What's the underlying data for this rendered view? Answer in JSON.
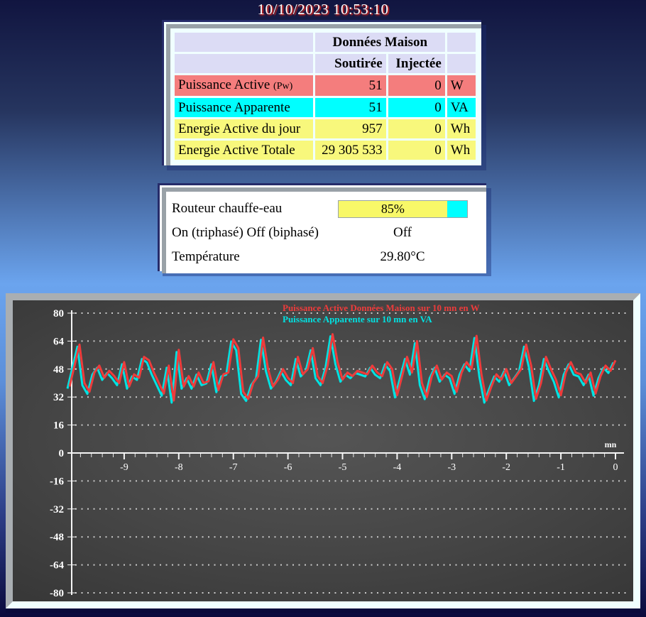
{
  "page": {
    "timestamp": "10/10/2023 10:53:10"
  },
  "maison_table": {
    "title": "Données Maison",
    "col_soutiree": "Soutirée",
    "col_injectee": "Injectée",
    "header_color": "#dcdcf5",
    "rows": [
      {
        "label": "Puissance Active",
        "label_suffix": "(Pw)",
        "soutiree": "51",
        "injectee": "0",
        "unit": "W",
        "color": "#f47d7d"
      },
      {
        "label": "Puissance Apparente",
        "label_suffix": "",
        "soutiree": "51",
        "injectee": "0",
        "unit": "VA",
        "color": "#00ffff"
      },
      {
        "label": "Energie Active du jour",
        "label_suffix": "",
        "soutiree": "957",
        "injectee": "0",
        "unit": "Wh",
        "color": "#f8f87c"
      },
      {
        "label": "Energie Active Totale",
        "label_suffix": "",
        "soutiree": "29 305 533",
        "injectee": "0",
        "unit": "Wh",
        "color": "#f8f87c"
      }
    ]
  },
  "router_panel": {
    "router_label": "Routeur chauffe-eau",
    "onoff_label": "On (triphasé) Off (biphasé)",
    "onoff_value": "Off",
    "temperature_label": "Température",
    "temperature_value": "29.80°C",
    "progress": {
      "percent": 85,
      "label": "85%",
      "fill_color": "#f8f868",
      "track_color": "#00ffff"
    }
  },
  "chart_data": {
    "type": "line",
    "x": {
      "min": -10,
      "max": 0,
      "major_ticks": [
        -9,
        -8,
        -7,
        -6,
        -5,
        -4,
        -3,
        -2,
        -1,
        0
      ],
      "minor_tick_step": 0.2,
      "unit": "mn"
    },
    "y": {
      "min": -80,
      "max": 80,
      "tick_step": 16,
      "ticks": [
        80,
        64,
        48,
        32,
        16,
        0,
        -16,
        -32,
        -48,
        -64,
        -80
      ]
    },
    "grid": "dotted-horizontal",
    "legend_position": "top-center",
    "legend": [
      {
        "label": "Puissance Active Données Maison sur 10 mn en W",
        "color": "#ee3b3b"
      },
      {
        "label": "Puissance Apparente sur 10 mn en VA",
        "color": "#00e2e2"
      }
    ],
    "series": [
      {
        "name": "Puissance Active Données Maison (W)",
        "color": "#ee3b3b",
        "values": [
          38,
          50,
          62,
          40,
          35,
          46,
          50,
          43,
          47,
          44,
          40,
          52,
          38,
          45,
          43,
          55,
          53,
          46,
          40,
          34,
          50,
          30,
          59,
          38,
          44,
          38,
          46,
          40,
          41,
          52,
          36,
          45,
          46,
          65,
          60,
          35,
          31,
          40,
          44,
          66,
          48,
          38,
          42,
          48,
          43,
          40,
          55,
          45,
          48,
          60,
          44,
          40,
          50,
          68,
          52,
          42,
          46,
          44,
          47,
          46,
          45,
          50,
          46,
          44,
          52,
          48,
          33,
          44,
          55,
          46,
          64,
          40,
          32,
          44,
          50,
          42,
          46,
          44,
          35,
          46,
          52,
          48,
          67,
          45,
          30,
          38,
          45,
          42,
          48,
          40,
          44,
          48,
          62,
          50,
          31,
          40,
          55,
          48,
          42,
          33,
          46,
          52,
          46,
          45,
          40,
          46,
          34,
          44,
          50,
          47,
          53
        ]
      },
      {
        "name": "Puissance Apparente (VA)",
        "color": "#00e2e2",
        "values": [
          38,
          50,
          62,
          40,
          35,
          46,
          50,
          43,
          47,
          44,
          40,
          52,
          38,
          45,
          43,
          55,
          53,
          46,
          40,
          34,
          50,
          30,
          59,
          38,
          44,
          38,
          46,
          40,
          41,
          52,
          36,
          45,
          46,
          65,
          60,
          35,
          31,
          40,
          44,
          66,
          48,
          38,
          42,
          48,
          43,
          40,
          55,
          45,
          48,
          60,
          44,
          40,
          50,
          68,
          52,
          42,
          46,
          44,
          47,
          46,
          45,
          50,
          46,
          44,
          52,
          48,
          33,
          44,
          55,
          46,
          64,
          40,
          32,
          44,
          50,
          42,
          46,
          44,
          35,
          46,
          52,
          48,
          67,
          45,
          30,
          38,
          45,
          42,
          48,
          40,
          44,
          48,
          62,
          50,
          31,
          40,
          55,
          48,
          42,
          33,
          46,
          52,
          46,
          45,
          40,
          46,
          34,
          44,
          50,
          47,
          53
        ]
      }
    ]
  }
}
